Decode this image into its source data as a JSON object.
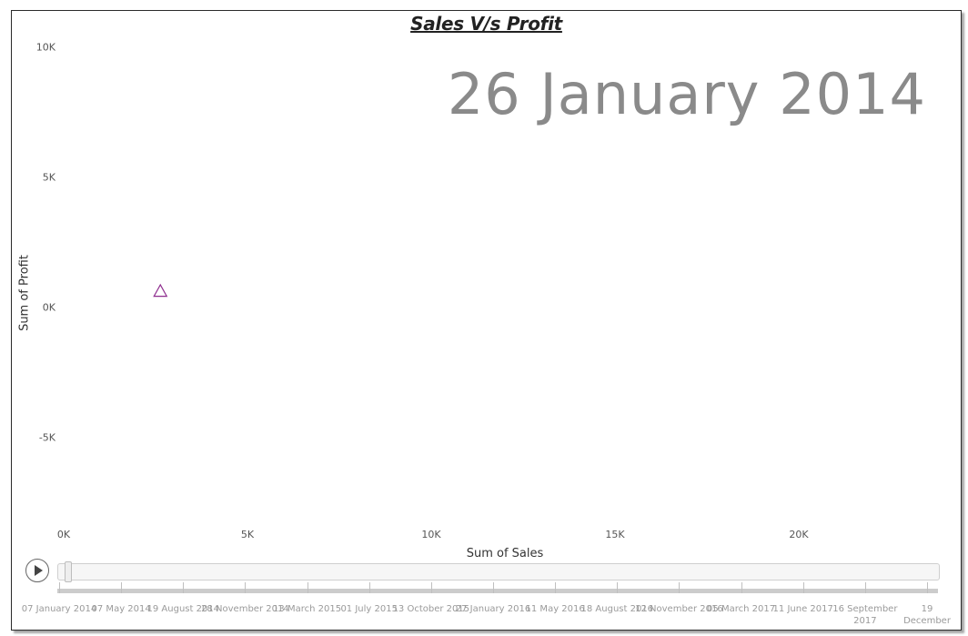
{
  "chart_data": {
    "type": "scatter",
    "title": "Sales V/s Profit",
    "current_frame_label": "26 January 2014",
    "xlabel": "Sum of Sales",
    "ylabel": "Sum of Profit",
    "xlim": [
      0,
      22500
    ],
    "ylim": [
      -7500,
      10000
    ],
    "x_ticks": [
      "0K",
      "5K",
      "10K",
      "15K",
      "20K"
    ],
    "x_tick_values": [
      0,
      5000,
      10000,
      15000,
      20000
    ],
    "y_ticks": [
      "10K",
      "5K",
      "0K",
      "-5K"
    ],
    "y_tick_values": [
      10000,
      5000,
      0,
      -5000
    ],
    "grid": false,
    "points": [
      {
        "x": 2630,
        "y": 620,
        "marker": "triangle",
        "color": "#8e2c8e"
      }
    ]
  },
  "timeline": {
    "play_icon": "play-icon",
    "labels": [
      [
        "07 January 2014"
      ],
      [
        "07 May 2014"
      ],
      [
        "19 August 2014"
      ],
      [
        "28 November 2014"
      ],
      [
        "13 March 2015"
      ],
      [
        "01 July 2015"
      ],
      [
        "13 October 2015"
      ],
      [
        "27 January 2016"
      ],
      [
        "11 May 2016"
      ],
      [
        "18 August 2016"
      ],
      [
        "12 November 2016"
      ],
      [
        "05 March 2017"
      ],
      [
        "11 June 2017"
      ],
      [
        "16 September",
        "2017"
      ],
      [
        "19",
        "December"
      ]
    ],
    "current_index": 0
  },
  "colors": {
    "point": "#8e2c8e",
    "big_date": "#8a8a8a",
    "frame_border": "#2b2b2b"
  }
}
